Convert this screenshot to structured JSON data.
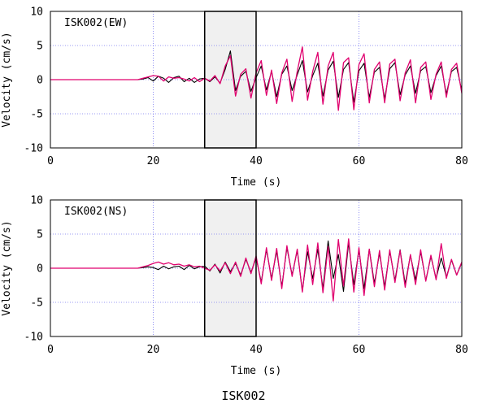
{
  "figure_caption": "ISK002",
  "chart_data": [
    {
      "type": "line",
      "title": "ISK002(EW)",
      "xlabel": "Time (s)",
      "ylabel": "Velocity (cm/s)",
      "xlim": [
        0,
        80
      ],
      "ylim": [
        -10,
        10
      ],
      "xticks": [
        "0",
        "20",
        "40",
        "60",
        "80"
      ],
      "yticks": [
        "10",
        "5",
        "0",
        "-5",
        "-10"
      ],
      "grid": true,
      "highlight_window": [
        30,
        40
      ],
      "series": [
        {
          "color": "#000000",
          "x": [
            0,
            17,
            18,
            19,
            20,
            21,
            22,
            23,
            24,
            25,
            26,
            27,
            28,
            29,
            30,
            31,
            32,
            33,
            34,
            35,
            36,
            37,
            38,
            39,
            40,
            41,
            42,
            43,
            44,
            45,
            46,
            47,
            48,
            49,
            50,
            51,
            52,
            53,
            54,
            55,
            56,
            57,
            58,
            59,
            60,
            61,
            62,
            63,
            64,
            65,
            66,
            67,
            68,
            69,
            70,
            71,
            72,
            73,
            74,
            75,
            76,
            77,
            78,
            79,
            80
          ],
          "values": [
            0,
            0,
            0.1,
            0.3,
            -0.2,
            0.5,
            0.2,
            -0.4,
            0.3,
            0.5,
            -0.3,
            0.2,
            -0.4,
            0.1,
            0.2,
            -0.3,
            0.4,
            -0.5,
            1.5,
            4.2,
            -1.6,
            0.5,
            1.2,
            -1.7,
            0.3,
            2,
            -1.5,
            1.2,
            -2.5,
            0.8,
            2,
            -1.6,
            0.7,
            2.8,
            -1.8,
            0.6,
            2.4,
            -2.4,
            1.4,
            2.7,
            -2.6,
            1.5,
            2.5,
            -3.3,
            1.3,
            2.4,
            -2.6,
            1.1,
            1.8,
            -2.8,
            1.6,
            2.5,
            -2.2,
            0.7,
            2,
            -2,
            1.3,
            1.9,
            -1.9,
            0.6,
            2,
            -2.1,
            1.2,
            1.8,
            -1.6
          ]
        },
        {
          "color": "#e0006e",
          "x": [
            0,
            17,
            18,
            19,
            20,
            21,
            22,
            23,
            24,
            25,
            26,
            27,
            28,
            29,
            30,
            31,
            32,
            33,
            34,
            35,
            36,
            37,
            38,
            39,
            40,
            41,
            42,
            43,
            44,
            45,
            46,
            47,
            48,
            49,
            50,
            51,
            52,
            53,
            54,
            55,
            56,
            57,
            58,
            59,
            60,
            61,
            62,
            63,
            64,
            65,
            66,
            67,
            68,
            69,
            70,
            71,
            72,
            73,
            74,
            75,
            76,
            77,
            78,
            79,
            80
          ],
          "values": [
            0,
            0,
            0.2,
            0.4,
            0.6,
            0.5,
            -0.2,
            0.4,
            0.2,
            0.3,
            0.1,
            -0.2,
            0.3,
            -0.3,
            0.2,
            -0.2,
            0.6,
            -0.6,
            2,
            3.5,
            -2.4,
            0.8,
            1.6,
            -2.7,
            1,
            2.8,
            -2.3,
            1.4,
            -3.5,
            1,
            3,
            -3.2,
            1.2,
            4.8,
            -3,
            1.2,
            4,
            -3.6,
            2,
            4,
            -4.5,
            2.5,
            3.2,
            -4.4,
            2.2,
            3.8,
            -3.4,
            1.5,
            2.6,
            -3.4,
            2.3,
            3,
            -3.1,
            1,
            2.9,
            -3.4,
            1.8,
            2.6,
            -2.9,
            0.8,
            2.6,
            -2.6,
            1.5,
            2.4,
            -2
          ]
        }
      ]
    },
    {
      "type": "line",
      "title": "ISK002(NS)",
      "xlabel": "Time (s)",
      "ylabel": "Velocity (cm/s)",
      "xlim": [
        0,
        80
      ],
      "ylim": [
        -10,
        10
      ],
      "xticks": [
        "0",
        "20",
        "40",
        "60",
        "80"
      ],
      "yticks": [
        "10",
        "5",
        "0",
        "-5",
        "-10"
      ],
      "grid": true,
      "highlight_window": [
        30,
        40
      ],
      "series": [
        {
          "color": "#000000",
          "x": [
            0,
            17,
            18,
            19,
            20,
            21,
            22,
            23,
            24,
            25,
            26,
            27,
            28,
            29,
            30,
            31,
            32,
            33,
            34,
            35,
            36,
            37,
            38,
            39,
            40,
            41,
            42,
            43,
            44,
            45,
            46,
            47,
            48,
            49,
            50,
            51,
            52,
            53,
            54,
            55,
            56,
            57,
            58,
            59,
            60,
            61,
            62,
            63,
            64,
            65,
            66,
            67,
            68,
            69,
            70,
            71,
            72,
            73,
            74,
            75,
            76,
            77,
            78,
            79,
            80
          ],
          "values": [
            0,
            0,
            0.1,
            0.2,
            0.1,
            -0.2,
            0.3,
            -0.1,
            0.2,
            0.3,
            -0.2,
            0.4,
            -0.1,
            0.2,
            0.3,
            -0.4,
            0.6,
            -0.7,
            0.9,
            -0.5,
            0.7,
            -1,
            1.3,
            -0.6,
            1.5,
            -2,
            2.7,
            -1.5,
            2.5,
            -2.7,
            3,
            -1,
            2.6,
            -3.3,
            2.4,
            -1.5,
            2.8,
            -3,
            4,
            -1.5,
            2,
            -3.4,
            3.7,
            -2.4,
            2.7,
            -3,
            2.8,
            -2.2,
            2.2,
            -2.7,
            2.5,
            -1.8,
            2.7,
            -2.3,
            1.9,
            -1.7,
            2.4,
            -1.8,
            1.7,
            -1.5,
            1.5,
            -1.3,
            1.2,
            -1,
            0.8
          ]
        },
        {
          "color": "#e0006e",
          "x": [
            0,
            17,
            18,
            19,
            20,
            21,
            22,
            23,
            24,
            25,
            26,
            27,
            28,
            29,
            30,
            31,
            32,
            33,
            34,
            35,
            36,
            37,
            38,
            39,
            40,
            41,
            42,
            43,
            44,
            45,
            46,
            47,
            48,
            49,
            50,
            51,
            52,
            53,
            54,
            55,
            56,
            57,
            58,
            59,
            60,
            61,
            62,
            63,
            64,
            65,
            66,
            67,
            68,
            69,
            70,
            71,
            72,
            73,
            74,
            75,
            76,
            77,
            78,
            79,
            80
          ],
          "values": [
            0,
            0,
            0.2,
            0.4,
            0.7,
            0.9,
            0.6,
            0.8,
            0.5,
            0.6,
            0.3,
            0.5,
            0.2,
            0.3,
            0,
            -0.3,
            0.5,
            -0.4,
            0.8,
            -0.8,
            0.9,
            -1.2,
            1.5,
            -0.8,
            1.8,
            -2.3,
            3,
            -1.8,
            2.9,
            -3,
            3.3,
            -1.2,
            2.8,
            -3.5,
            3.4,
            -2.4,
            3.7,
            -3.6,
            3.2,
            -4.8,
            4.2,
            -2.6,
            4.3,
            -3.5,
            3,
            -4,
            2.8,
            -2.7,
            2.6,
            -3.2,
            2.7,
            -2.1,
            2.6,
            -2.8,
            2,
            -2.4,
            2.7,
            -1.9,
            1.9,
            -1.7,
            3.6,
            -1.5,
            1.3,
            -1,
            0.9
          ]
        }
      ]
    }
  ]
}
